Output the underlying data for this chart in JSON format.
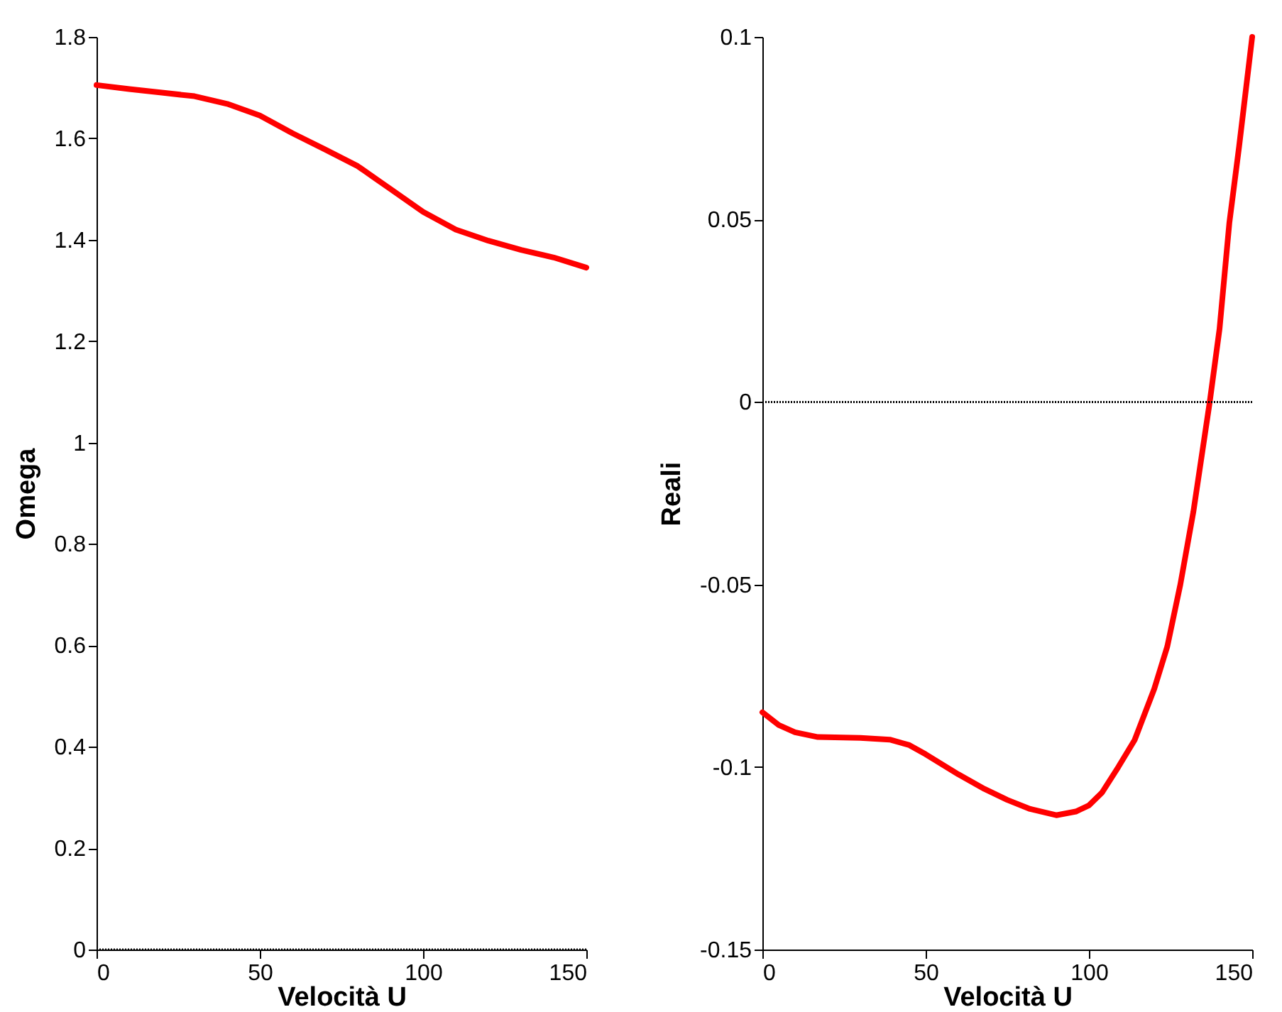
{
  "chart_data": [
    {
      "type": "line",
      "xlabel": "Velocità U",
      "ylabel": "Omega",
      "xlim": [
        0,
        150
      ],
      "xticks": [
        0,
        50,
        100,
        150
      ],
      "ylim": [
        0,
        1.8
      ],
      "yticks": [
        {
          "value": 0,
          "label": "0"
        },
        0.2,
        0.4,
        0.6,
        0.8,
        {
          "value": 1,
          "label": "1"
        },
        1.2,
        1.4,
        1.6,
        1.8
      ],
      "grid": false,
      "legend": false,
      "ref_lines": [
        {
          "axis": "y",
          "value": 0,
          "color": "#000000",
          "line_style": "dotted"
        }
      ],
      "series": [
        {
          "color": "#ff0000",
          "x": [
            0,
            10,
            20,
            30,
            40,
            50,
            60,
            70,
            80,
            90,
            100,
            110,
            120,
            130,
            140,
            150
          ],
          "values": [
            1.705,
            1.697,
            1.69,
            1.683,
            1.668,
            1.645,
            1.61,
            1.578,
            1.545,
            1.5,
            1.455,
            1.42,
            1.398,
            1.38,
            1.365,
            1.345
          ]
        }
      ]
    },
    {
      "type": "line",
      "xlabel": "Velocità U",
      "ylabel": "Reali",
      "xlim": [
        0,
        150
      ],
      "xticks": [
        0,
        50,
        100,
        150
      ],
      "ylim": [
        -0.15,
        0.1
      ],
      "yticks": [
        {
          "value": -0.15,
          "label": "-0.15"
        },
        {
          "value": -0.1,
          "label": "-0.1"
        },
        {
          "value": -0.05,
          "label": "-0.05"
        },
        {
          "value": 0,
          "label": "0"
        },
        0.05,
        {
          "value": 0.1,
          "label": "0.1"
        }
      ],
      "grid": false,
      "legend": false,
      "ref_lines": [
        {
          "axis": "y",
          "value": 0,
          "color": "#000000",
          "line_style": "dotted"
        }
      ],
      "series": [
        {
          "color": "#ff0000",
          "x": [
            0,
            5,
            10,
            17,
            30,
            39,
            45,
            50,
            60,
            68,
            75,
            82,
            90,
            96,
            100,
            104,
            109,
            114,
            120,
            124,
            128,
            132,
            137,
            140,
            143,
            146,
            150
          ],
          "values": [
            -0.085,
            -0.0885,
            -0.0905,
            -0.0918,
            -0.092,
            -0.0925,
            -0.094,
            -0.0965,
            -0.102,
            -0.106,
            -0.109,
            -0.1115,
            -0.1132,
            -0.1122,
            -0.1105,
            -0.107,
            -0.1,
            -0.0926,
            -0.0786,
            -0.067,
            -0.05,
            -0.03,
            0,
            0.02,
            0.049,
            0.07,
            0.1
          ]
        }
      ]
    }
  ]
}
